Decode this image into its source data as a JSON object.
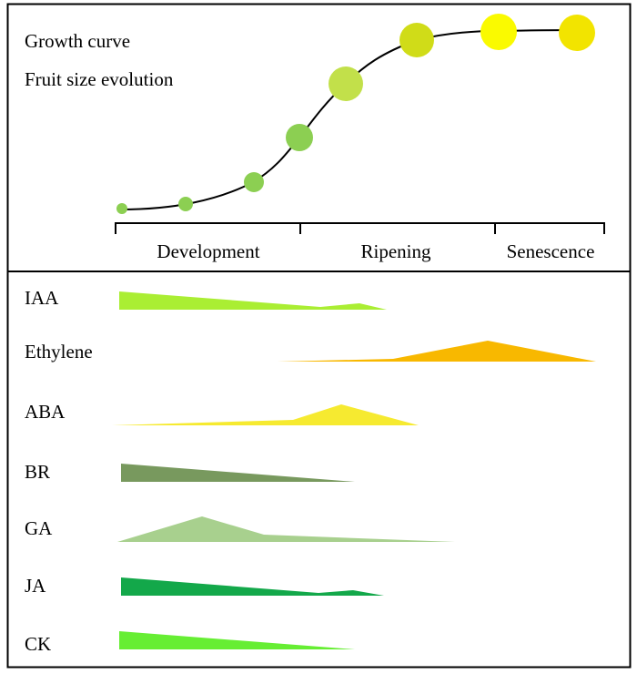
{
  "top_panel": {
    "title_line1": "Growth curve",
    "title_line2": "Fruit size evolution",
    "stages": [
      "Development",
      "Ripening",
      "Senescence"
    ],
    "fruit_dots": [
      {
        "color": "#8ccf52"
      },
      {
        "color": "#8ccf52"
      },
      {
        "color": "#8ccf52"
      },
      {
        "color": "#8ccf52"
      },
      {
        "color": "#c2e04a"
      },
      {
        "color": "#d0dc18"
      },
      {
        "color": "#fafa00"
      },
      {
        "color": "#f2e400"
      }
    ]
  },
  "hormones": [
    {
      "name": "IAA",
      "color": "#aaee33"
    },
    {
      "name": "Ethylene",
      "color": "#f8b800"
    },
    {
      "name": "ABA",
      "color": "#f6ea30"
    },
    {
      "name": "BR",
      "color": "#78995e"
    },
    {
      "name": "GA",
      "color": "#a8d08e"
    },
    {
      "name": "JA",
      "color": "#13a84a"
    },
    {
      "name": "CK",
      "color": "#66ee33"
    }
  ]
}
